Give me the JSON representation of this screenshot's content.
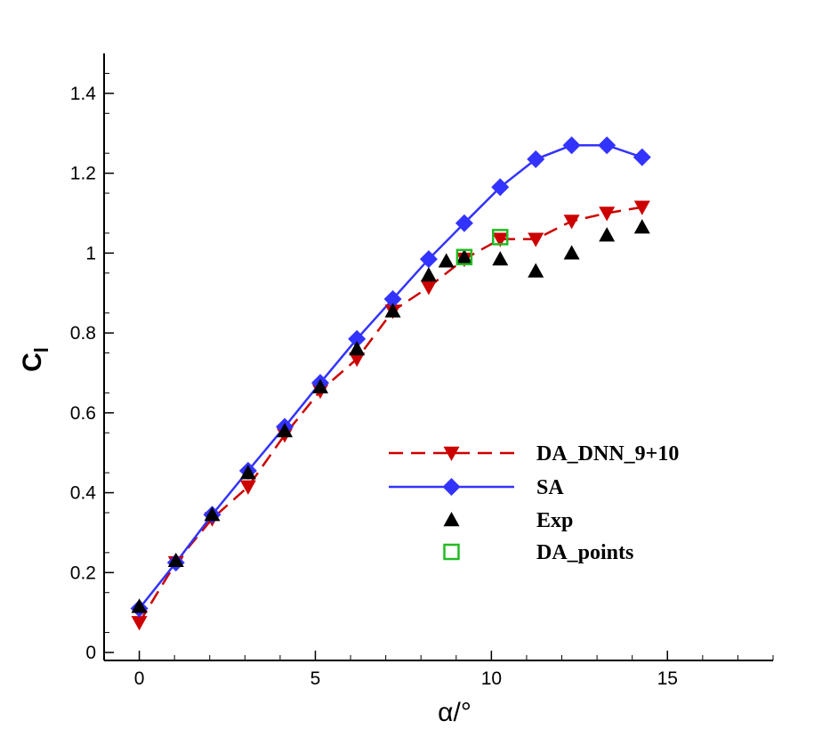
{
  "chart_data": {
    "type": "line",
    "xlabel": "α/°",
    "ylabel": {
      "main": "C",
      "sub": "l"
    },
    "xlim": [
      -1,
      18
    ],
    "ylim": [
      -0.02,
      1.5
    ],
    "x_ticks": [
      0,
      5,
      10,
      15
    ],
    "y_ticks": [
      0,
      0.2,
      0.4,
      0.6,
      0.8,
      1,
      1.2,
      1.4
    ],
    "x_tick_labels": [
      "0",
      "5",
      "10",
      "15"
    ],
    "y_tick_labels": [
      "0",
      "0.2",
      "0.4",
      "0.6",
      "0.8",
      "1",
      "1.2",
      "1.4"
    ],
    "grid": false,
    "legend_position": "lower-right",
    "series": [
      {
        "name": "DA_DNN_9+10",
        "style": "dashed-line-down-triangle",
        "color": "#cc0000",
        "x": [
          0,
          1.04,
          2.07,
          3.09,
          4.13,
          5.14,
          6.18,
          7.2,
          8.22,
          9.23,
          10.25,
          11.26,
          12.28,
          13.28,
          14.28
        ],
        "y": [
          0.075,
          0.225,
          0.335,
          0.415,
          0.545,
          0.655,
          0.735,
          0.855,
          0.915,
          0.985,
          1.035,
          1.035,
          1.08,
          1.1,
          1.115
        ]
      },
      {
        "name": "SA",
        "style": "solid-line-diamond",
        "color": "#3333ff",
        "x": [
          0,
          1.04,
          2.07,
          3.09,
          4.13,
          5.14,
          6.18,
          7.2,
          8.22,
          9.23,
          10.25,
          11.26,
          12.28,
          13.28,
          14.28
        ],
        "y": [
          0.11,
          0.225,
          0.345,
          0.455,
          0.565,
          0.675,
          0.785,
          0.885,
          0.985,
          1.075,
          1.165,
          1.235,
          1.27,
          1.27,
          1.24
        ]
      },
      {
        "name": "Exp",
        "style": "marker-up-triangle",
        "color": "#000000",
        "x": [
          0,
          1.04,
          2.07,
          3.09,
          4.13,
          5.14,
          6.18,
          7.2,
          8.22,
          8.72,
          9.23,
          10.25,
          11.26,
          12.28,
          13.28,
          14.28
        ],
        "y": [
          0.115,
          0.23,
          0.345,
          0.45,
          0.555,
          0.665,
          0.76,
          0.855,
          0.945,
          0.98,
          0.99,
          0.985,
          0.955,
          1.0,
          1.045,
          1.065
        ]
      },
      {
        "name": "DA_points",
        "style": "marker-open-square",
        "color": "#22bb22",
        "x": [
          9.23,
          10.25
        ],
        "y": [
          0.99,
          1.04
        ]
      }
    ]
  }
}
